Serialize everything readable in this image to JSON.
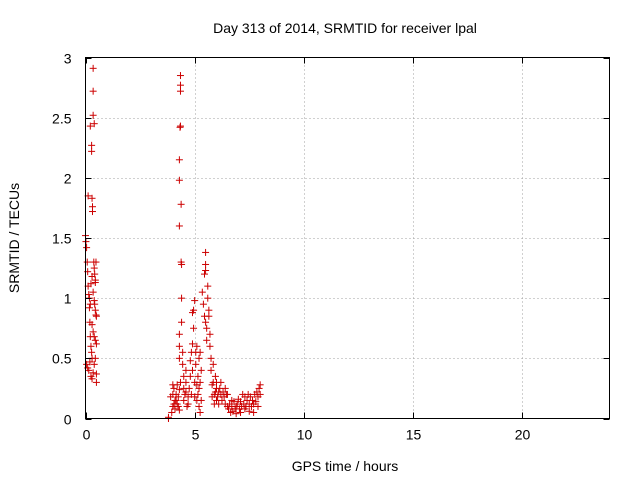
{
  "chart_data": {
    "type": "scatter",
    "title": "Day 313 of 2014, SRMTID for receiver lpal",
    "xlabel": "GPS time / hours",
    "ylabel": "SRMTID / TECUs",
    "xlim": [
      0,
      24
    ],
    "ylim": [
      0,
      3
    ],
    "xticks": [
      0,
      5,
      10,
      15,
      20
    ],
    "yticks": [
      0,
      0.5,
      1,
      1.5,
      2,
      2.5,
      3
    ],
    "xtick_labels": [
      "0",
      "5",
      "10",
      "15",
      "20"
    ],
    "ytick_labels": [
      "0",
      "0.5",
      "1",
      "1.5",
      "2",
      "2.5",
      "3"
    ],
    "grid": true,
    "marker": "+",
    "series": [
      {
        "name": "SRMTID",
        "color": "#cc0000",
        "points": [
          [
            0.0,
            1.52
          ],
          [
            0.02,
            1.47
          ],
          [
            0.05,
            1.42
          ],
          [
            0.08,
            1.3
          ],
          [
            0.1,
            1.22
          ],
          [
            0.12,
            1.1
          ],
          [
            0.15,
            1.03
          ],
          [
            0.18,
            0.92
          ],
          [
            0.2,
            0.8
          ],
          [
            0.22,
            0.68
          ],
          [
            0.25,
            0.6
          ],
          [
            0.28,
            0.55
          ],
          [
            0.3,
            0.5
          ],
          [
            0.05,
            0.45
          ],
          [
            0.1,
            0.42
          ],
          [
            0.15,
            0.4
          ],
          [
            0.2,
            0.47
          ],
          [
            0.25,
            0.35
          ],
          [
            0.3,
            0.33
          ],
          [
            0.35,
            0.38
          ],
          [
            0.4,
            0.45
          ],
          [
            0.45,
            0.5
          ],
          [
            0.5,
            0.3
          ],
          [
            0.5,
            0.37
          ],
          [
            0.12,
            1.85
          ],
          [
            0.22,
            2.43
          ],
          [
            0.28,
            2.22
          ],
          [
            0.28,
            2.27
          ],
          [
            0.3,
            1.83
          ],
          [
            0.32,
            1.76
          ],
          [
            0.32,
            1.72
          ],
          [
            0.35,
            2.52
          ],
          [
            0.35,
            2.72
          ],
          [
            0.35,
            2.91
          ],
          [
            0.4,
            2.45
          ],
          [
            0.38,
            1.3
          ],
          [
            0.4,
            1.25
          ],
          [
            0.42,
            1.2
          ],
          [
            0.45,
            1.15
          ],
          [
            0.45,
            1.13
          ],
          [
            0.48,
            1.3
          ],
          [
            0.35,
            1.05
          ],
          [
            0.4,
            0.98
          ],
          [
            0.42,
            0.95
          ],
          [
            0.45,
            0.9
          ],
          [
            0.48,
            0.86
          ],
          [
            0.5,
            0.85
          ],
          [
            0.3,
            0.78
          ],
          [
            0.35,
            0.72
          ],
          [
            0.4,
            0.68
          ],
          [
            0.45,
            0.65
          ],
          [
            0.5,
            0.62
          ],
          [
            0.22,
            0.95
          ],
          [
            0.18,
            1.0
          ],
          [
            0.25,
            1.12
          ],
          [
            0.3,
            1.18
          ],
          [
            3.8,
            0.0
          ],
          [
            3.8,
            0.01
          ],
          [
            3.95,
            0.05
          ],
          [
            4.0,
            0.1
          ],
          [
            4.0,
            0.2
          ],
          [
            4.05,
            0.25
          ],
          [
            4.1,
            0.15
          ],
          [
            4.1,
            0.08
          ],
          [
            4.15,
            0.2
          ],
          [
            4.2,
            0.28
          ],
          [
            4.2,
            0.12
          ],
          [
            4.25,
            0.18
          ],
          [
            4.3,
            0.24
          ],
          [
            4.3,
            0.07
          ],
          [
            4.35,
            0.3
          ],
          [
            3.9,
            0.18
          ],
          [
            4.0,
            0.28
          ],
          [
            4.05,
            0.12
          ],
          [
            4.15,
            0.15
          ],
          [
            4.25,
            0.1
          ],
          [
            4.3,
            0.6
          ],
          [
            4.3,
            0.5
          ],
          [
            4.3,
            0.7
          ],
          [
            4.3,
            1.6
          ],
          [
            4.3,
            1.98
          ],
          [
            4.3,
            2.15
          ],
          [
            4.33,
            2.42
          ],
          [
            4.35,
            2.43
          ],
          [
            4.35,
            2.72
          ],
          [
            4.35,
            2.77
          ],
          [
            4.35,
            2.85
          ],
          [
            4.38,
            1.78
          ],
          [
            4.38,
            1.3
          ],
          [
            4.4,
            1.28
          ],
          [
            4.4,
            1.0
          ],
          [
            4.4,
            0.8
          ],
          [
            4.45,
            0.55
          ],
          [
            4.45,
            0.45
          ],
          [
            4.5,
            0.35
          ],
          [
            4.5,
            0.25
          ],
          [
            4.5,
            0.15
          ],
          [
            4.55,
            0.2
          ],
          [
            4.6,
            0.3
          ],
          [
            4.6,
            0.4
          ],
          [
            4.6,
            0.22
          ],
          [
            4.65,
            0.1
          ],
          [
            4.7,
            0.18
          ],
          [
            4.7,
            0.12
          ],
          [
            4.75,
            0.25
          ],
          [
            4.8,
            0.35
          ],
          [
            4.8,
            0.48
          ],
          [
            4.85,
            0.55
          ],
          [
            4.85,
            0.2
          ],
          [
            4.9,
            0.4
          ],
          [
            4.9,
            0.62
          ],
          [
            4.9,
            0.88
          ],
          [
            4.95,
            0.9
          ],
          [
            4.95,
            0.75
          ],
          [
            5.0,
            0.98
          ],
          [
            5.0,
            0.3
          ],
          [
            5.0,
            0.18
          ],
          [
            5.05,
            0.45
          ],
          [
            5.05,
            0.55
          ],
          [
            5.1,
            0.6
          ],
          [
            5.1,
            0.28
          ],
          [
            5.1,
            0.15
          ],
          [
            5.15,
            0.35
          ],
          [
            5.15,
            0.2
          ],
          [
            5.2,
            0.5
          ],
          [
            5.2,
            0.1
          ],
          [
            5.2,
            0.25
          ],
          [
            5.25,
            0.55
          ],
          [
            5.25,
            0.3
          ],
          [
            5.25,
            0.05
          ],
          [
            5.3,
            0.4
          ],
          [
            5.3,
            0.15
          ],
          [
            5.35,
            1.05
          ],
          [
            5.4,
            0.95
          ],
          [
            5.45,
            0.85
          ],
          [
            5.45,
            1.2
          ],
          [
            5.5,
            1.23
          ],
          [
            5.5,
            1.28
          ],
          [
            5.5,
            1.38
          ],
          [
            5.5,
            0.8
          ],
          [
            5.55,
            0.75
          ],
          [
            5.55,
            0.65
          ],
          [
            5.6,
            1.1
          ],
          [
            5.6,
            1.0
          ],
          [
            5.65,
            0.9
          ],
          [
            5.65,
            0.85
          ],
          [
            5.7,
            0.7
          ],
          [
            5.7,
            0.6
          ],
          [
            5.75,
            0.5
          ],
          [
            5.75,
            0.4
          ],
          [
            5.8,
            0.28
          ],
          [
            5.8,
            0.18
          ],
          [
            5.85,
            0.3
          ],
          [
            5.9,
            0.2
          ],
          [
            5.9,
            0.12
          ],
          [
            5.95,
            0.22
          ],
          [
            6.0,
            0.25
          ],
          [
            6.0,
            0.15
          ],
          [
            6.05,
            0.18
          ],
          [
            6.1,
            0.22
          ],
          [
            6.1,
            0.12
          ],
          [
            6.15,
            0.25
          ],
          [
            6.2,
            0.2
          ],
          [
            6.25,
            0.15
          ],
          [
            6.3,
            0.22
          ],
          [
            6.35,
            0.18
          ],
          [
            6.4,
            0.12
          ],
          [
            6.45,
            0.2
          ],
          [
            6.5,
            0.1
          ],
          [
            6.55,
            0.08
          ],
          [
            6.6,
            0.12
          ],
          [
            6.65,
            0.05
          ],
          [
            6.7,
            0.1
          ],
          [
            6.75,
            0.06
          ],
          [
            6.8,
            0.14
          ],
          [
            6.85,
            0.08
          ],
          [
            6.9,
            0.04
          ],
          [
            6.95,
            0.12
          ],
          [
            7.0,
            0.16
          ],
          [
            7.05,
            0.08
          ],
          [
            7.1,
            0.14
          ],
          [
            7.15,
            0.1
          ],
          [
            7.2,
            0.2
          ],
          [
            7.25,
            0.12
          ],
          [
            7.3,
            0.18
          ],
          [
            7.35,
            0.1
          ],
          [
            7.4,
            0.15
          ],
          [
            7.45,
            0.2
          ],
          [
            7.5,
            0.12
          ],
          [
            7.55,
            0.18
          ],
          [
            7.6,
            0.1
          ],
          [
            7.65,
            0.15
          ],
          [
            7.7,
            0.12
          ],
          [
            7.75,
            0.2
          ],
          [
            7.8,
            0.14
          ],
          [
            7.85,
            0.22
          ],
          [
            7.9,
            0.18
          ],
          [
            7.95,
            0.25
          ],
          [
            8.0,
            0.2
          ],
          [
            8.0,
            0.28
          ],
          [
            6.5,
            0.2
          ],
          [
            6.7,
            0.15
          ],
          [
            6.9,
            0.1
          ],
          [
            7.1,
            0.05
          ],
          [
            7.3,
            0.08
          ],
          [
            7.5,
            0.06
          ],
          [
            7.7,
            0.05
          ],
          [
            7.9,
            0.1
          ],
          [
            6.2,
            0.3
          ],
          [
            6.4,
            0.25
          ],
          [
            6.0,
            0.3
          ],
          [
            5.85,
            0.45
          ],
          [
            5.95,
            0.35
          ]
        ]
      }
    ]
  }
}
